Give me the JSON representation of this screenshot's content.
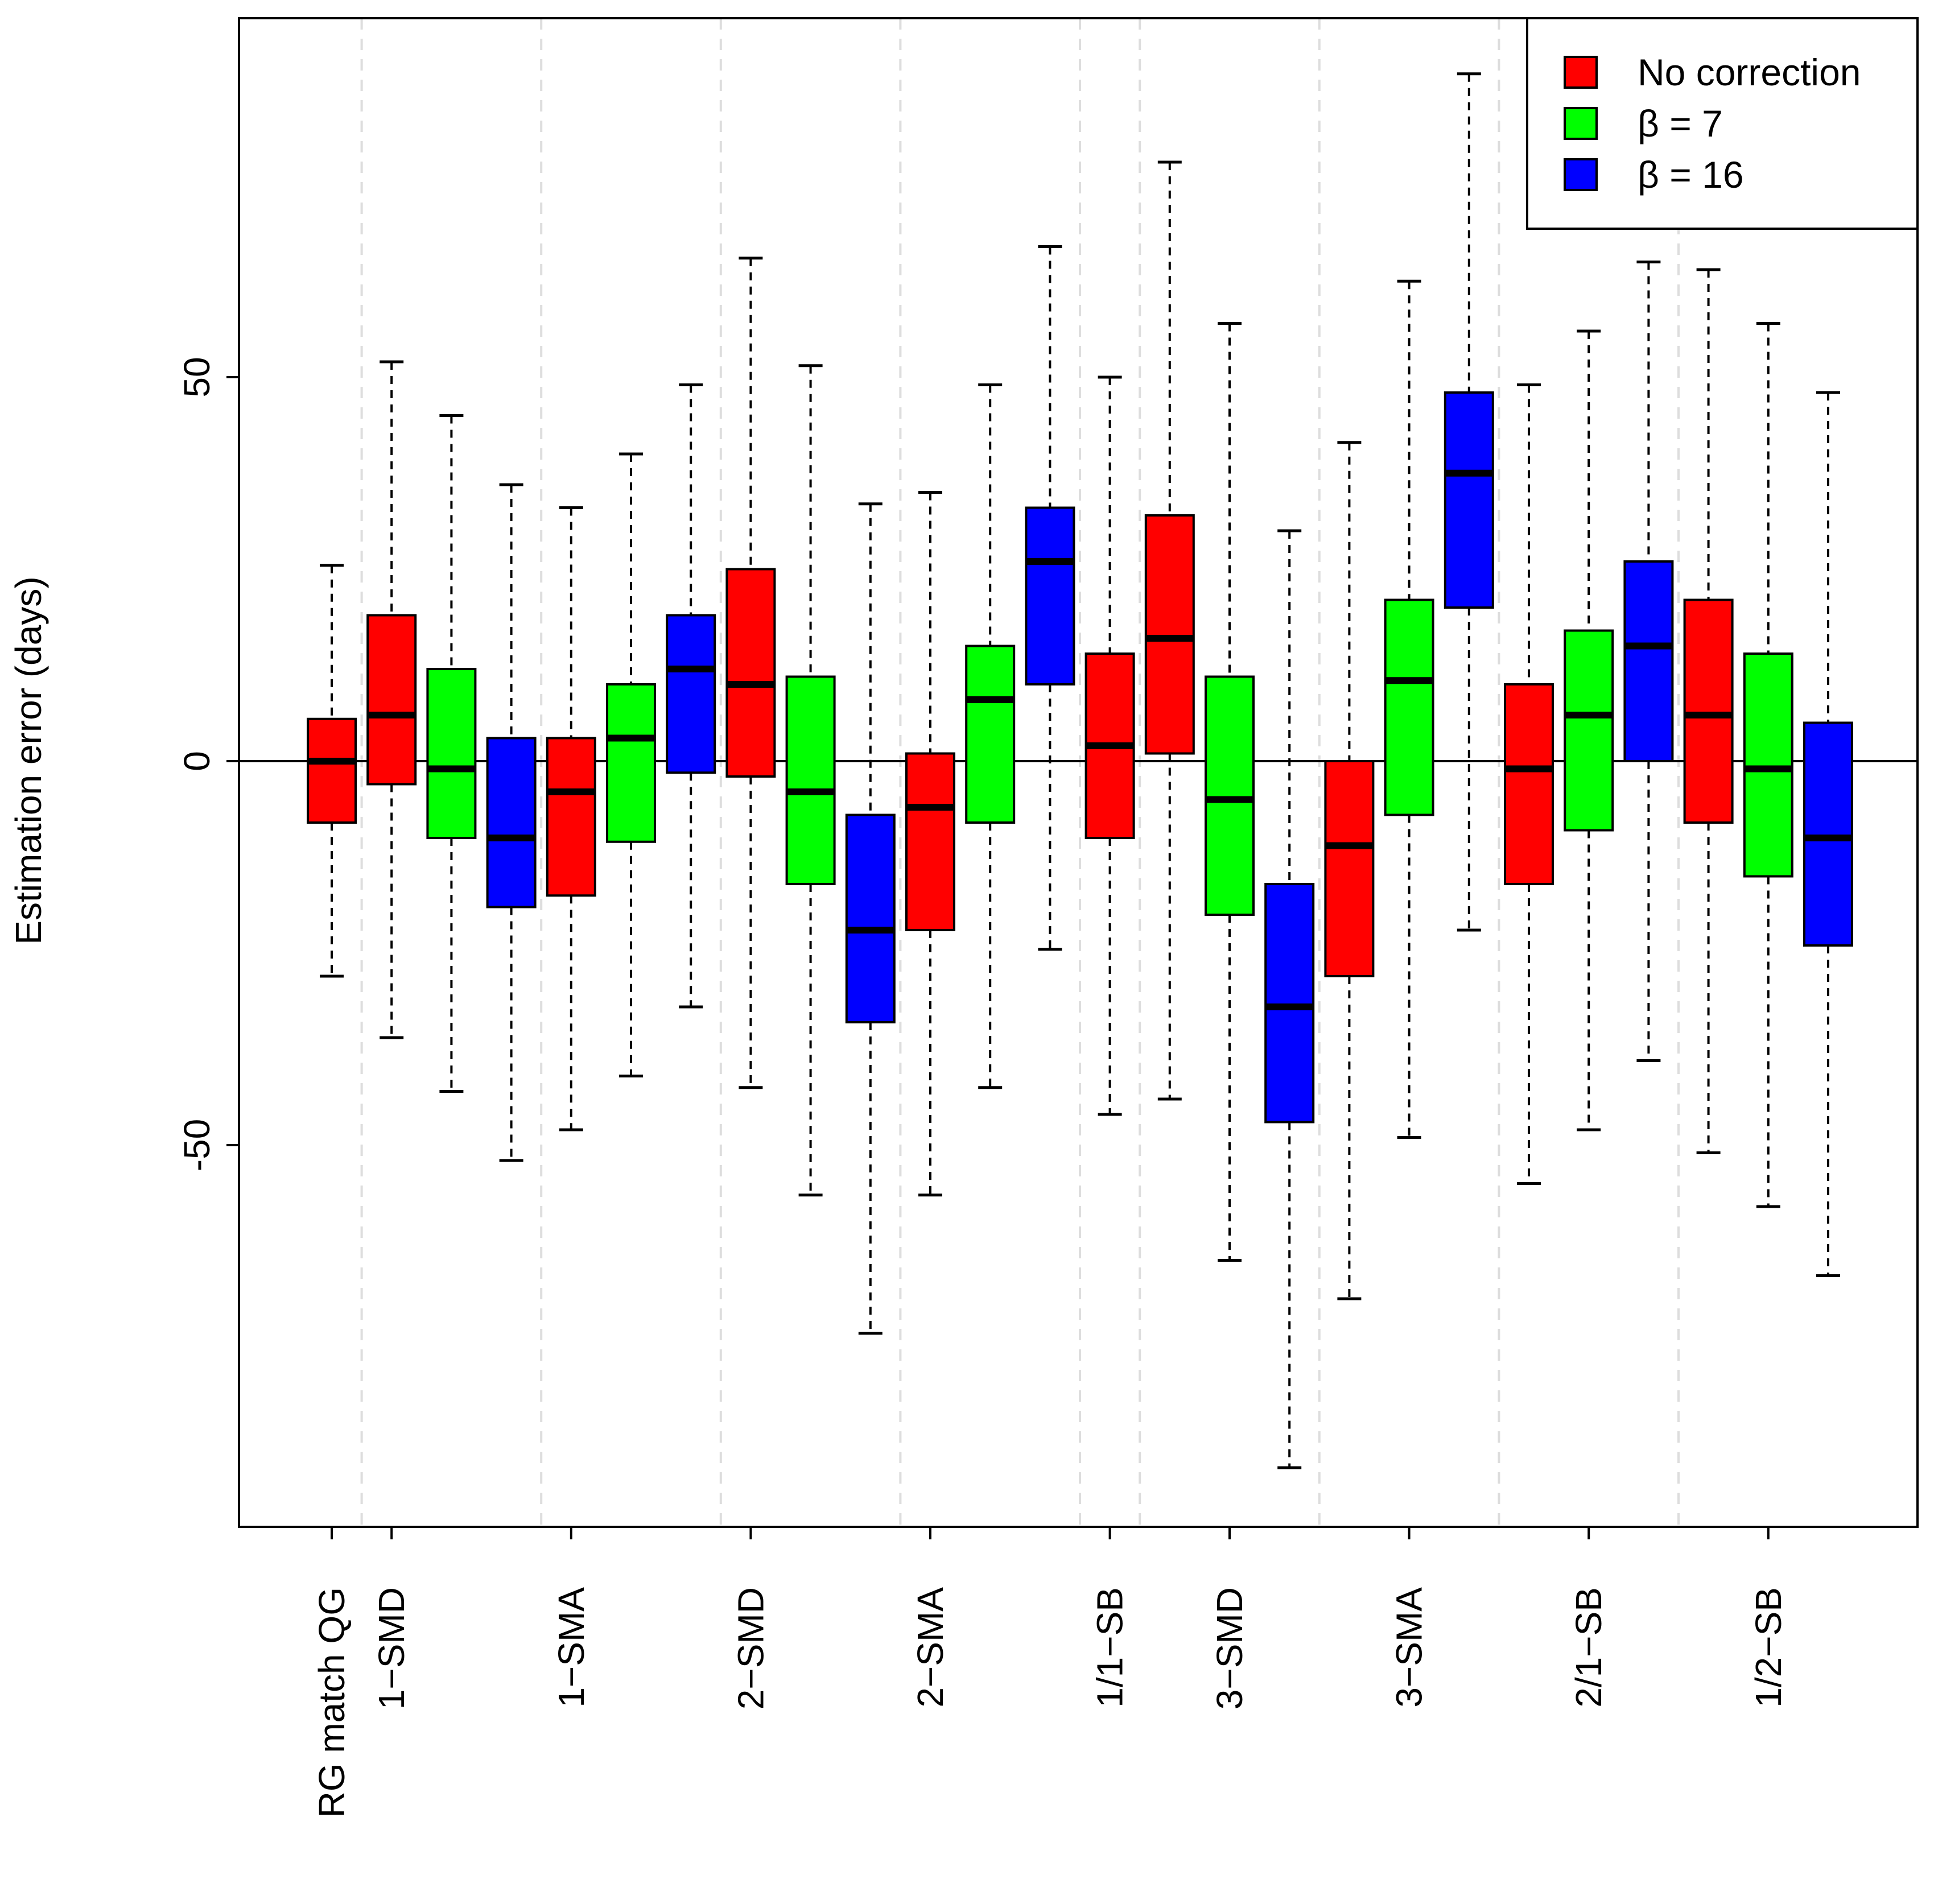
{
  "chart_data": {
    "type": "boxplot",
    "title": "",
    "xlabel": "",
    "ylabel": "Estimation error (days)",
    "ylim": [
      -99,
      97
    ],
    "yticks": [
      -50,
      0,
      50
    ],
    "ytick_labels": [
      "-50",
      "0",
      "50"
    ],
    "grid": false,
    "reference_line": 0,
    "legend_position": "top-right",
    "legend": [
      {
        "label": "No correction",
        "color": "#ff0000"
      },
      {
        "label": "β = 7",
        "color": "#00ff00"
      },
      {
        "label": "β = 16",
        "color": "#0000ff"
      }
    ],
    "category_labels": [
      "RG match QG",
      "1−SMD",
      "1−SMA",
      "2−SMD",
      "2−SMA",
      "1/1−SB",
      "3−SMD",
      "3−SMA",
      "2/1−SB",
      "1/2−SB"
    ],
    "series_colors": {
      "No correction": "#ff0000",
      "β = 7": "#00ff00",
      "β = 16": "#0000ff"
    },
    "boxes": [
      {
        "series": "No correction",
        "whisker_low": -28,
        "q1": -8,
        "median": 0,
        "q3": 5.5,
        "whisker_high": 25.5
      },
      {
        "series": "No correction",
        "whisker_low": -36,
        "q1": -3,
        "median": 6,
        "q3": 19,
        "whisker_high": 52
      },
      {
        "series": "β = 7",
        "whisker_low": -43,
        "q1": -10,
        "median": -1,
        "q3": 12,
        "whisker_high": 45
      },
      {
        "series": "β = 16",
        "whisker_low": -52,
        "q1": -19,
        "median": -10,
        "q3": 3,
        "whisker_high": 36
      },
      {
        "series": "No correction",
        "whisker_low": -48,
        "q1": -17.5,
        "median": -4,
        "q3": 3,
        "whisker_high": 33
      },
      {
        "series": "β = 7",
        "whisker_low": -41,
        "q1": -10.5,
        "median": 3,
        "q3": 10,
        "whisker_high": 40
      },
      {
        "series": "β = 16",
        "whisker_low": -32,
        "q1": -1.5,
        "median": 12,
        "q3": 19,
        "whisker_high": 49
      },
      {
        "series": "No correction",
        "whisker_low": -42.5,
        "q1": -2,
        "median": 10,
        "q3": 25,
        "whisker_high": 65.5
      },
      {
        "series": "β = 7",
        "whisker_low": -56.5,
        "q1": -16,
        "median": -4,
        "q3": 11,
        "whisker_high": 51.5
      },
      {
        "series": "β = 16",
        "whisker_low": -74.5,
        "q1": -34,
        "median": -22,
        "q3": -7,
        "whisker_high": 33.5
      },
      {
        "series": "No correction",
        "whisker_low": -56.5,
        "q1": -22,
        "median": -6,
        "q3": 1,
        "whisker_high": 35
      },
      {
        "series": "β = 7",
        "whisker_low": -42.5,
        "q1": -8,
        "median": 8,
        "q3": 15,
        "whisker_high": 49
      },
      {
        "series": "β = 16",
        "whisker_low": -24.5,
        "q1": 10,
        "median": 26,
        "q3": 33,
        "whisker_high": 67
      },
      {
        "series": "No correction",
        "whisker_low": -46,
        "q1": -10,
        "median": 2,
        "q3": 14,
        "whisker_high": 50
      },
      {
        "series": "No correction",
        "whisker_low": -44,
        "q1": 1,
        "median": 16,
        "q3": 32,
        "whisker_high": 78
      },
      {
        "series": "β = 7",
        "whisker_low": -65,
        "q1": -20,
        "median": -5,
        "q3": 11,
        "whisker_high": 57
      },
      {
        "series": "β = 16",
        "whisker_low": -92,
        "q1": -47,
        "median": -32,
        "q3": -16,
        "whisker_high": 30
      },
      {
        "series": "No correction",
        "whisker_low": -70,
        "q1": -28,
        "median": -11,
        "q3": 0,
        "whisker_high": 41.5
      },
      {
        "series": "β = 7",
        "whisker_low": -49,
        "q1": -7,
        "median": 10.5,
        "q3": 21,
        "whisker_high": 62.5
      },
      {
        "series": "β = 16",
        "whisker_low": -22,
        "q1": 20,
        "median": 37.5,
        "q3": 48,
        "whisker_high": 89.5
      },
      {
        "series": "No correction",
        "whisker_low": -55,
        "q1": -16,
        "median": -1,
        "q3": 10,
        "whisker_high": 49
      },
      {
        "series": "β = 7",
        "whisker_low": -48,
        "q1": -9,
        "median": 6,
        "q3": 17,
        "whisker_high": 56
      },
      {
        "series": "β = 16",
        "whisker_low": -39,
        "q1": 0,
        "median": 15,
        "q3": 26,
        "whisker_high": 65
      },
      {
        "series": "No correction",
        "whisker_low": -51,
        "q1": -8,
        "median": 6,
        "q3": 21,
        "whisker_high": 64
      },
      {
        "series": "β = 7",
        "whisker_low": -58,
        "q1": -15,
        "median": -1,
        "q3": 14,
        "whisker_high": 57
      },
      {
        "series": "β = 16",
        "whisker_low": -67,
        "q1": -24,
        "median": -10,
        "q3": 5,
        "whisker_high": 48
      }
    ]
  }
}
